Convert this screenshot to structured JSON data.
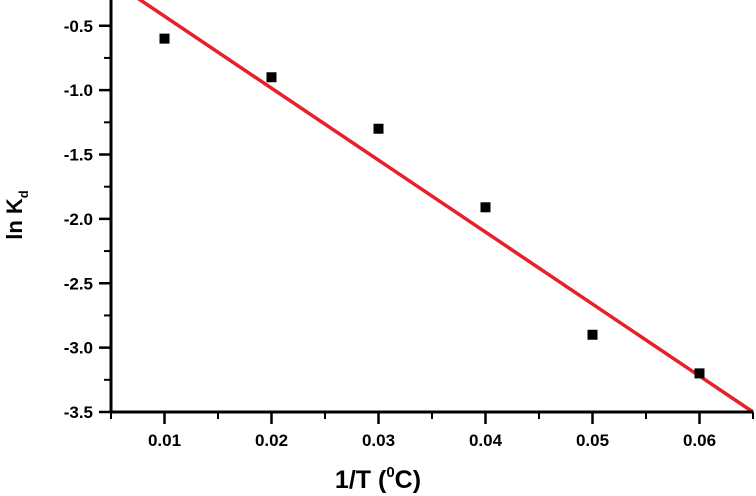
{
  "chart_data": {
    "type": "scatter",
    "xlabel": "1/T (",
    "xlabel_sup": "0",
    "xlabel_end": "C)",
    "ylabel": "ln K",
    "ylabel_sub": "d",
    "xlim": [
      0.005,
      0.065
    ],
    "ylim": [
      -3.5,
      -0.3
    ],
    "x_ticks": [
      0.01,
      0.02,
      0.03,
      0.04,
      0.05,
      0.06
    ],
    "x_tick_labels": [
      "0.01",
      "0.02",
      "0.03",
      "0.04",
      "0.05",
      "0.06"
    ],
    "y_ticks": [
      -0.5,
      -1.0,
      -1.5,
      -2.0,
      -2.5,
      -3.0,
      -3.5
    ],
    "y_tick_labels": [
      "-0.5",
      "-1.0",
      "-1.5",
      "-2.0",
      "-2.5",
      "-3.0",
      "-3.5"
    ],
    "points": {
      "x": [
        0.01,
        0.02,
        0.03,
        0.04,
        0.05,
        0.06
      ],
      "y": [
        -0.6,
        -0.9,
        -1.3,
        -1.91,
        -2.9,
        -3.2
      ]
    },
    "fit_line": {
      "x": [
        0.00703,
        0.065
      ],
      "y": [
        -0.26,
        -3.5
      ]
    },
    "colors": {
      "points": "#000000",
      "fit": "#e8202a",
      "axes": "#000000"
    },
    "grid": false
  }
}
